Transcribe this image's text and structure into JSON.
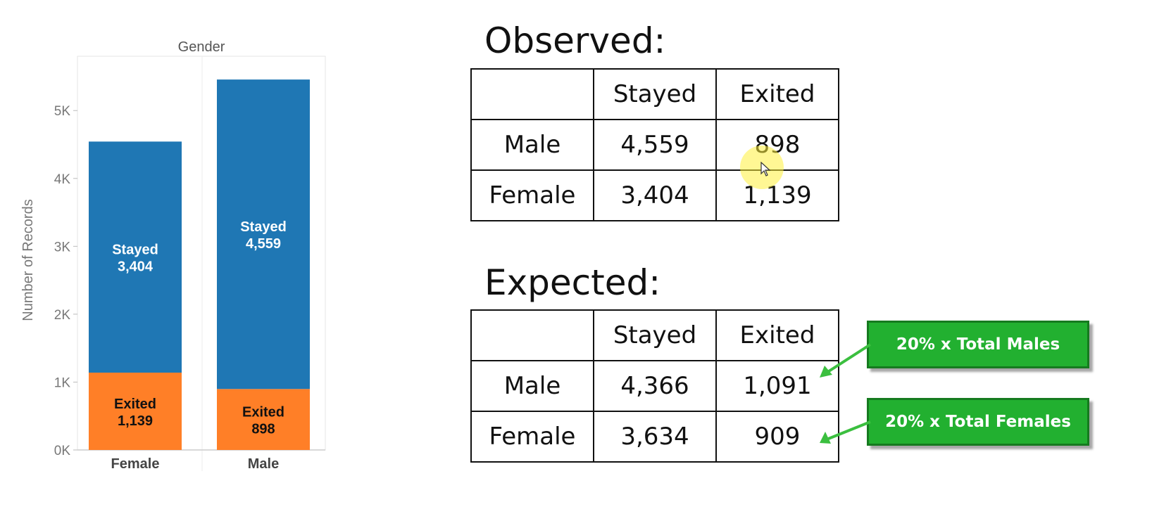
{
  "chart_data": {
    "type": "bar",
    "stacked": true,
    "title": "Gender",
    "xlabel": "",
    "ylabel": "Number of Records",
    "categories": [
      "Female",
      "Male"
    ],
    "series": [
      {
        "name": "Exited",
        "values": [
          1139,
          898
        ],
        "color": "#ff7f27"
      },
      {
        "name": "Stayed",
        "values": [
          3404,
          4559
        ],
        "color": "#1f77b4"
      }
    ],
    "segment_labels": {
      "Exited": [
        "Exited\n1,139",
        "Exited\n898"
      ],
      "Stayed": [
        "Stayed\n3,404",
        "Stayed\n4,559"
      ]
    },
    "ylim": [
      0,
      5800
    ],
    "yticks": [
      0,
      1000,
      2000,
      3000,
      4000,
      5000
    ],
    "ytick_labels": [
      "0K",
      "1K",
      "2K",
      "3K",
      "4K",
      "5K"
    ],
    "grid": false,
    "legend": "none"
  },
  "observed": {
    "title": "Observed:",
    "header": [
      "",
      "Stayed",
      "Exited"
    ],
    "rows": [
      [
        "Male",
        "4,559",
        "898"
      ],
      [
        "Female",
        "3,404",
        "1,139"
      ]
    ]
  },
  "expected": {
    "title": "Expected:",
    "header": [
      "",
      "Stayed",
      "Exited"
    ],
    "rows": [
      [
        "Male",
        "4,366",
        "1,091"
      ],
      [
        "Female",
        "3,634",
        "909"
      ]
    ]
  },
  "callouts": {
    "males": "20% x Total Males",
    "females": "20% x Total Females",
    "color": "#22b030"
  }
}
